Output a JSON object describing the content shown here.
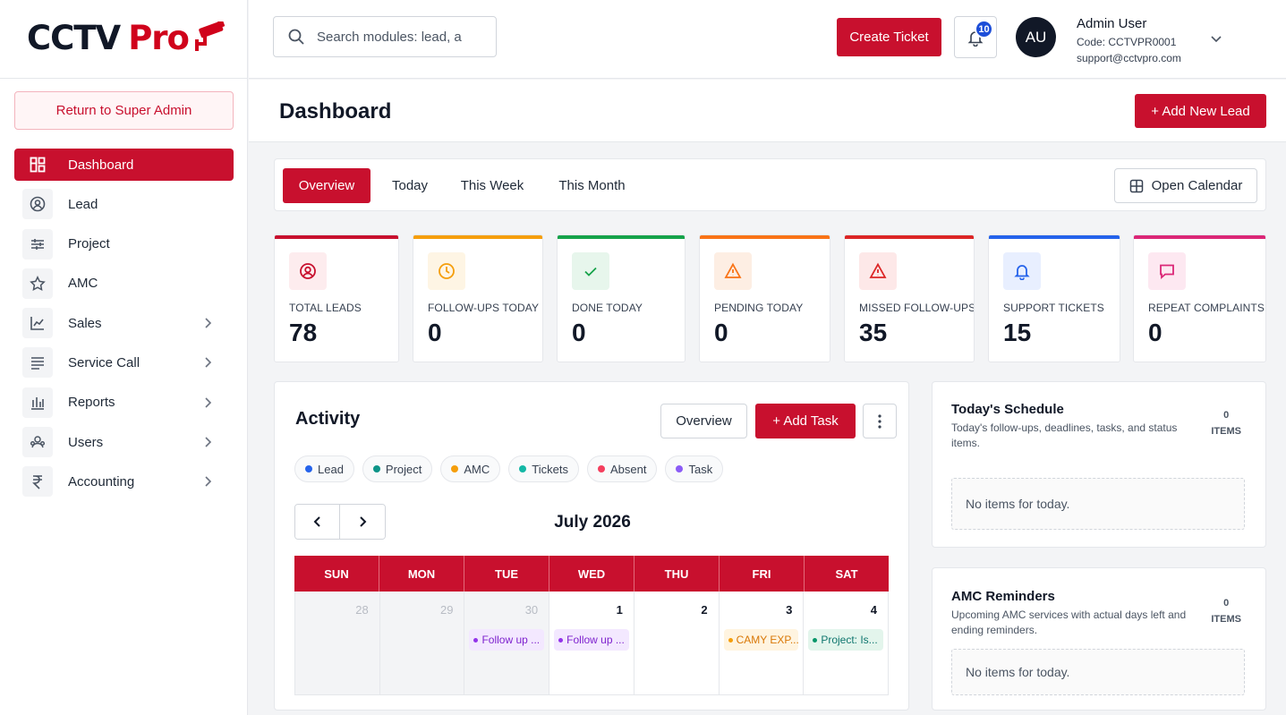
{
  "brand": {
    "name_part1": "CCTV",
    "name_part2": "Pro",
    "accent": "#c8102e"
  },
  "sidebar": {
    "return_label": "Return to Super Admin",
    "items": [
      {
        "label": "Dashboard",
        "icon": "dashboard-icon",
        "active": true,
        "has_children": false
      },
      {
        "label": "Lead",
        "icon": "user-circle-icon",
        "active": false,
        "has_children": false
      },
      {
        "label": "Project",
        "icon": "sliders-icon",
        "active": false,
        "has_children": false
      },
      {
        "label": "AMC",
        "icon": "star-icon",
        "active": false,
        "has_children": false
      },
      {
        "label": "Sales",
        "icon": "chart-line-icon",
        "active": false,
        "has_children": true
      },
      {
        "label": "Service Call",
        "icon": "list-icon",
        "active": false,
        "has_children": true
      },
      {
        "label": "Reports",
        "icon": "bar-chart-icon",
        "active": false,
        "has_children": true
      },
      {
        "label": "Users",
        "icon": "users-icon",
        "active": false,
        "has_children": true
      },
      {
        "label": "Accounting",
        "icon": "rupee-icon",
        "active": false,
        "has_children": true
      }
    ]
  },
  "topbar": {
    "search_placeholder": "Search modules: lead, a",
    "create_ticket_label": "Create Ticket",
    "notification_count": "10",
    "avatar_initials": "AU",
    "user_name": "Admin User",
    "user_code": "Code: CCTVPR0001",
    "user_email": "support@cctvpro.com"
  },
  "header": {
    "title": "Dashboard",
    "add_lead_label": "+ Add New Lead"
  },
  "tabs": {
    "items": [
      "Overview",
      "Today",
      "This Week",
      "This Month"
    ],
    "active": "Overview",
    "calendar_button": "Open Calendar"
  },
  "stats": [
    {
      "label": "TOTAL LEADS",
      "value": "78",
      "color": "#c8102e",
      "icon": "user-circle-icon",
      "tint": "#fdecee"
    },
    {
      "label": "FOLLOW-UPS TODAY",
      "value": "0",
      "color": "#f59e0b",
      "icon": "clock-icon",
      "tint": "#fef5e4"
    },
    {
      "label": "DONE TODAY",
      "value": "0",
      "color": "#16a34a",
      "icon": "check-icon",
      "tint": "#e7f6ec"
    },
    {
      "label": "PENDING TODAY",
      "value": "0",
      "color": "#f97316",
      "icon": "warning-icon",
      "tint": "#fdeee3"
    },
    {
      "label": "MISSED FOLLOW-UPS",
      "value": "35",
      "color": "#dc2626",
      "icon": "warning-icon",
      "tint": "#fde8e8"
    },
    {
      "label": "SUPPORT TICKETS",
      "value": "15",
      "color": "#2563eb",
      "icon": "bell-icon",
      "tint": "#e8efff"
    },
    {
      "label": "REPEAT COMPLAINTS",
      "value": "0",
      "color": "#db2777",
      "icon": "message-icon",
      "tint": "#fde8f1"
    }
  ],
  "activity": {
    "title": "Activity",
    "overview_label": "Overview",
    "add_task_label": "+ Add Task",
    "legend": [
      {
        "label": "Lead",
        "color": "#2563eb"
      },
      {
        "label": "Project",
        "color": "#0d9488"
      },
      {
        "label": "AMC",
        "color": "#f59e0b"
      },
      {
        "label": "Tickets",
        "color": "#14b8a6"
      },
      {
        "label": "Absent",
        "color": "#f43f5e"
      },
      {
        "label": "Task",
        "color": "#8b5cf6"
      }
    ],
    "month": "July 2026",
    "weekdays": [
      "SUN",
      "MON",
      "TUE",
      "WED",
      "THU",
      "FRI",
      "SAT"
    ],
    "days": [
      {
        "num": "28",
        "muted": true,
        "event": ""
      },
      {
        "num": "29",
        "muted": true,
        "event": ""
      },
      {
        "num": "30",
        "muted": true,
        "event": "Follow up ...",
        "evt_bg": "#f3e8ff",
        "evt_fg": "#7e22ce",
        "evt_dot": "#9333ea"
      },
      {
        "num": "1",
        "muted": false,
        "event": "Follow up ...",
        "evt_bg": "#f3e8ff",
        "evt_fg": "#7e22ce",
        "evt_dot": "#9333ea"
      },
      {
        "num": "2",
        "muted": false,
        "event": ""
      },
      {
        "num": "3",
        "muted": false,
        "event": "CAMY EXP...",
        "evt_bg": "#fff4e0",
        "evt_fg": "#d97706",
        "evt_dot": "#f59e0b"
      },
      {
        "num": "4",
        "muted": false,
        "event": "Project: Is...",
        "evt_bg": "#e3f5ec",
        "evt_fg": "#0f766e",
        "evt_dot": "#059669"
      }
    ]
  },
  "schedule": {
    "title": "Today's Schedule",
    "subtitle": "Today's follow-ups, deadlines, tasks, and status items.",
    "count": "0",
    "count_label": "ITEMS",
    "empty": "No items for today."
  },
  "amc": {
    "title": "AMC Reminders",
    "subtitle": "Upcoming AMC services with actual days left and ending reminders.",
    "count": "0",
    "count_label": "ITEMS",
    "empty": "No items for today."
  }
}
